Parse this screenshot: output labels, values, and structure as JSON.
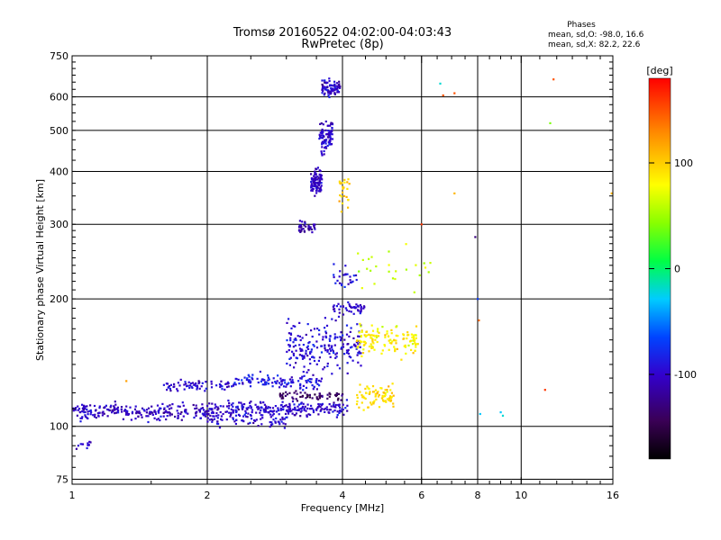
{
  "chart_data": {
    "type": "scatter",
    "title": "Tromsø 20160522 04:02:00-04:03:43",
    "subtitle": "RwPretec (8p)",
    "stats": {
      "header": "Phases",
      "line_o": "mean, sd,O: -98.0, 16.6",
      "line_x": "mean, sd,X:  82.2, 22.6"
    },
    "xlabel": "Frequency [MHz]",
    "ylabel": "Stationary phase Virtual Height [km]",
    "xscale": "log",
    "yscale": "log",
    "xlim": [
      1,
      16
    ],
    "ylim": [
      73,
      750
    ],
    "x_ticks": [
      {
        "value": 1,
        "label": "1"
      },
      {
        "value": 2,
        "label": "2"
      },
      {
        "value": 4,
        "label": "4"
      },
      {
        "value": 6,
        "label": "6"
      },
      {
        "value": 8,
        "label": "8"
      },
      {
        "value": 10,
        "label": "10"
      },
      {
        "value": 16,
        "label": "16"
      }
    ],
    "y_ticks": [
      {
        "value": 75,
        "label": "75"
      },
      {
        "value": 100,
        "label": "100"
      },
      {
        "value": 200,
        "label": "200"
      },
      {
        "value": 300,
        "label": "300"
      },
      {
        "value": 400,
        "label": "400"
      },
      {
        "value": 500,
        "label": "500"
      },
      {
        "value": 600,
        "label": "600"
      },
      {
        "value": 750,
        "label": "750"
      }
    ],
    "grid": true,
    "colorbar": {
      "label": "[deg]",
      "range": [
        -180,
        180
      ],
      "ticks": [
        {
          "value": 100,
          "label": "100"
        },
        {
          "value": 0,
          "label": "0"
        },
        {
          "value": -100,
          "label": "-100"
        }
      ]
    },
    "clusters": [
      {
        "x_range": [
          1.0,
          2.2
        ],
        "y_center": 108,
        "y_spread": 0.035,
        "count": 260,
        "phase": -105
      },
      {
        "x_range": [
          1.02,
          1.1
        ],
        "y_center": 91,
        "y_spread": 0.025,
        "count": 12,
        "phase": -100
      },
      {
        "x_range": [
          1.6,
          2.3
        ],
        "y_center": 125,
        "y_spread": 0.02,
        "count": 70,
        "phase": -100
      },
      {
        "x_range": [
          2.2,
          4.1
        ],
        "y_center": 110,
        "y_spread": 0.03,
        "count": 220,
        "phase": -100
      },
      {
        "x_range": [
          2.3,
          3.6
        ],
        "y_center": 128,
        "y_spread": 0.03,
        "count": 110,
        "phase": -90
      },
      {
        "x_range": [
          2.0,
          3.0
        ],
        "y_center": 103,
        "y_spread": 0.03,
        "count": 60,
        "phase": -100
      },
      {
        "x_range": [
          2.9,
          4.0
        ],
        "y_center": 118,
        "y_spread": 0.02,
        "count": 60,
        "phase": -140
      },
      {
        "x_range": [
          3.0,
          4.4
        ],
        "y_center": 155,
        "y_spread": 0.09,
        "count": 200,
        "phase": -95
      },
      {
        "x_range": [
          3.8,
          4.5
        ],
        "y_center": 190,
        "y_spread": 0.02,
        "count": 45,
        "phase": -100
      },
      {
        "x_range": [
          3.8,
          4.3
        ],
        "y_center": 225,
        "y_spread": 0.05,
        "count": 25,
        "phase": -95
      },
      {
        "x_range": [
          4.3,
          5.9
        ],
        "y_center": 160,
        "y_spread": 0.06,
        "count": 130,
        "phase": 85
      },
      {
        "x_range": [
          4.3,
          5.2
        ],
        "y_center": 118,
        "y_spread": 0.05,
        "count": 80,
        "phase": 95
      },
      {
        "x_range": [
          3.2,
          3.5
        ],
        "y_center": 295,
        "y_spread": 0.02,
        "count": 40,
        "phase": -110
      },
      {
        "x_range": [
          3.4,
          3.6
        ],
        "y_center": 380,
        "y_spread": 0.05,
        "count": 100,
        "phase": -105
      },
      {
        "x_range": [
          3.55,
          3.8
        ],
        "y_center": 480,
        "y_spread": 0.06,
        "count": 90,
        "phase": -100
      },
      {
        "x_range": [
          3.6,
          3.95
        ],
        "y_center": 630,
        "y_spread": 0.035,
        "count": 80,
        "phase": -100
      },
      {
        "x_range": [
          3.9,
          4.15
        ],
        "y_center": 360,
        "y_spread": 0.08,
        "count": 25,
        "phase": 100
      },
      {
        "x_range": [
          4.2,
          6.3
        ],
        "y_center": 235,
        "y_spread": 0.15,
        "count": 25,
        "phase": 60
      }
    ],
    "outliers": [
      {
        "x": 1.32,
        "y": 128,
        "phase": 120
      },
      {
        "x": 6.6,
        "y": 645,
        "phase": -20
      },
      {
        "x": 6.7,
        "y": 605,
        "phase": 150
      },
      {
        "x": 7.1,
        "y": 612,
        "phase": 150
      },
      {
        "x": 7.1,
        "y": 355,
        "phase": 110
      },
      {
        "x": 6.0,
        "y": 300,
        "phase": 160
      },
      {
        "x": 7.9,
        "y": 280,
        "phase": -130
      },
      {
        "x": 8.0,
        "y": 200,
        "phase": -70
      },
      {
        "x": 8.05,
        "y": 178,
        "phase": 140
      },
      {
        "x": 8.1,
        "y": 107,
        "phase": -30
      },
      {
        "x": 9.0,
        "y": 108,
        "phase": -30
      },
      {
        "x": 9.1,
        "y": 106,
        "phase": -20
      },
      {
        "x": 11.3,
        "y": 122,
        "phase": 160
      },
      {
        "x": 11.8,
        "y": 660,
        "phase": 150
      },
      {
        "x": 11.6,
        "y": 520,
        "phase": 40
      },
      {
        "x": 15.9,
        "y": 355,
        "phase": 110
      }
    ]
  }
}
